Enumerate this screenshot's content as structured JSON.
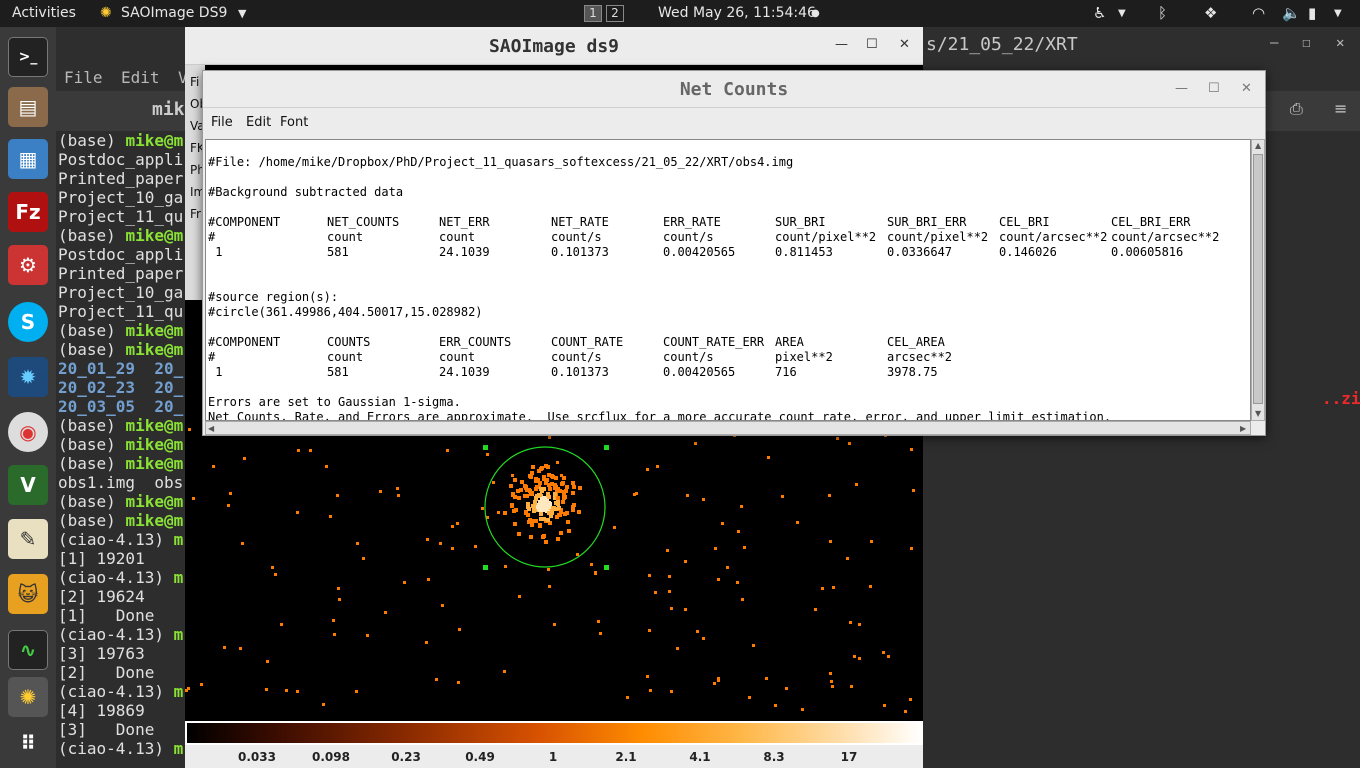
{
  "topbar": {
    "activities": "Activities",
    "app_name": "SAOImage DS9",
    "workspace_1": "1",
    "workspace_2": "2",
    "clock": "Wed May 26, 11:54:46"
  },
  "terminal": {
    "title_fragment": "s/21_05_22/XRT",
    "menu": [
      "File",
      "Edit",
      "V"
    ],
    "tab_title_fragment": "mik",
    "lines": [
      {
        "prompt": "(base) ",
        "user": "mike@m",
        "text": ""
      },
      {
        "prompt": "",
        "user": "",
        "text": "Postdoc_appli"
      },
      {
        "prompt": "",
        "user": "",
        "text": "Printed_paper"
      },
      {
        "prompt": "",
        "user": "",
        "text": "Project_10_ga"
      },
      {
        "prompt": "",
        "user": "",
        "text": "Project_11_qu"
      },
      {
        "prompt": "(base) ",
        "user": "mike@m",
        "text": ""
      },
      {
        "prompt": "",
        "user": "",
        "text": "Postdoc_appli"
      },
      {
        "prompt": "",
        "user": "",
        "text": "Printed_paper"
      },
      {
        "prompt": "",
        "user": "",
        "text": "Project_10_ga"
      },
      {
        "prompt": "",
        "user": "",
        "text": "Project_11_qu"
      },
      {
        "prompt": "(base) ",
        "user": "mike@m",
        "text": ""
      },
      {
        "prompt": "(base) ",
        "user": "mike@m",
        "text": ""
      },
      {
        "prompt": "",
        "user": "",
        "dir": "20_01_29  20_"
      },
      {
        "prompt": "",
        "user": "",
        "dir": "20_02_23  20_"
      },
      {
        "prompt": "",
        "user": "",
        "dir": "20_03_05  20_"
      },
      {
        "prompt": "(base) ",
        "user": "mike@m",
        "text": ""
      },
      {
        "prompt": "(base) ",
        "user": "mike@m",
        "text": ""
      },
      {
        "prompt": "(base) ",
        "user": "mike@m",
        "text": ""
      },
      {
        "prompt": "",
        "user": "",
        "text": "obs1.img  obs"
      },
      {
        "prompt": "(base) ",
        "user": "mike@m",
        "text": ""
      },
      {
        "prompt": "(base) ",
        "user": "mike@m",
        "text": ""
      },
      {
        "prompt": "(ciao-4.13) ",
        "user": "m",
        "text": ""
      },
      {
        "prompt": "",
        "user": "",
        "text": "[1] 19201"
      },
      {
        "prompt": "(ciao-4.13) ",
        "user": "m",
        "text": ""
      },
      {
        "prompt": "",
        "user": "",
        "text": "[2] 19624"
      },
      {
        "prompt": "",
        "user": "",
        "text": "[1]   Done"
      },
      {
        "prompt": "(ciao-4.13) ",
        "user": "m",
        "text": ""
      },
      {
        "prompt": "",
        "user": "",
        "text": "[3] 19763"
      },
      {
        "prompt": "",
        "user": "",
        "text": "[2]   Done"
      },
      {
        "prompt": "(ciao-4.13) ",
        "user": "m",
        "text": ""
      },
      {
        "prompt": "",
        "user": "",
        "text": "[4] 19869"
      },
      {
        "prompt": "",
        "user": "",
        "text": "[3]   Done"
      },
      {
        "prompt": "(ciao-4.13) ",
        "user": "m",
        "text": ""
      }
    ],
    "zip_fragment": "..zip"
  },
  "ds9": {
    "title": "SAOImage ds9",
    "side_labels": [
      "Fi",
      "Ob",
      "Va",
      "FK",
      "Ph",
      "Im",
      "Fr"
    ],
    "colorbar_labels": [
      "0.033",
      "0.098",
      "0.23",
      "0.49",
      "1",
      "2.1",
      "4.1",
      "8.3",
      "17"
    ]
  },
  "netcounts": {
    "title": "Net Counts",
    "menu": {
      "file": "File",
      "edit": "Edit",
      "font": "Font"
    },
    "file_line": "#File: /home/mike/Dropbox/PhD/Project_11_quasars_softexcess/21_05_22/XRT/obs4.img",
    "bg_line": "#Background subtracted data",
    "table1": {
      "headers": [
        "#COMPONENT",
        "NET_COUNTS",
        "NET_ERR",
        "NET_RATE",
        "ERR_RATE",
        "SUR_BRI",
        "SUR_BRI_ERR",
        "CEL_BRI",
        "CEL_BRI_ERR"
      ],
      "units": [
        "#",
        "count",
        "count",
        "count/s",
        "count/s",
        "count/pixel**2",
        "count/pixel**2",
        "count/arcsec**2",
        "count/arcsec**2"
      ],
      "values": [
        " 1",
        "581",
        "24.1039",
        "0.101373",
        "0.00420565",
        "0.811453",
        "0.0336647",
        "0.146026",
        "0.00605816"
      ]
    },
    "source_label": "#source region(s):",
    "source_region": "#circle(361.49986,404.50017,15.028982)",
    "table2": {
      "headers": [
        "#COMPONENT",
        "COUNTS",
        "ERR_COUNTS",
        "COUNT_RATE",
        "COUNT_RATE_ERR",
        "AREA",
        "CEL_AREA"
      ],
      "units": [
        "#",
        "count",
        "count",
        "count/s",
        "count/s",
        "pixel**2",
        "arcsec**2"
      ],
      "values": [
        " 1",
        "581",
        "24.1039",
        "0.101373",
        "0.00420565",
        "716",
        "3978.75"
      ]
    },
    "errors_line": "Errors are set to Gaussian 1-sigma.",
    "note_line": "Net Counts, Rate, and Errors are approximate.  Use srcflux for a more accurate count rate, error, and upper limit estimation."
  }
}
